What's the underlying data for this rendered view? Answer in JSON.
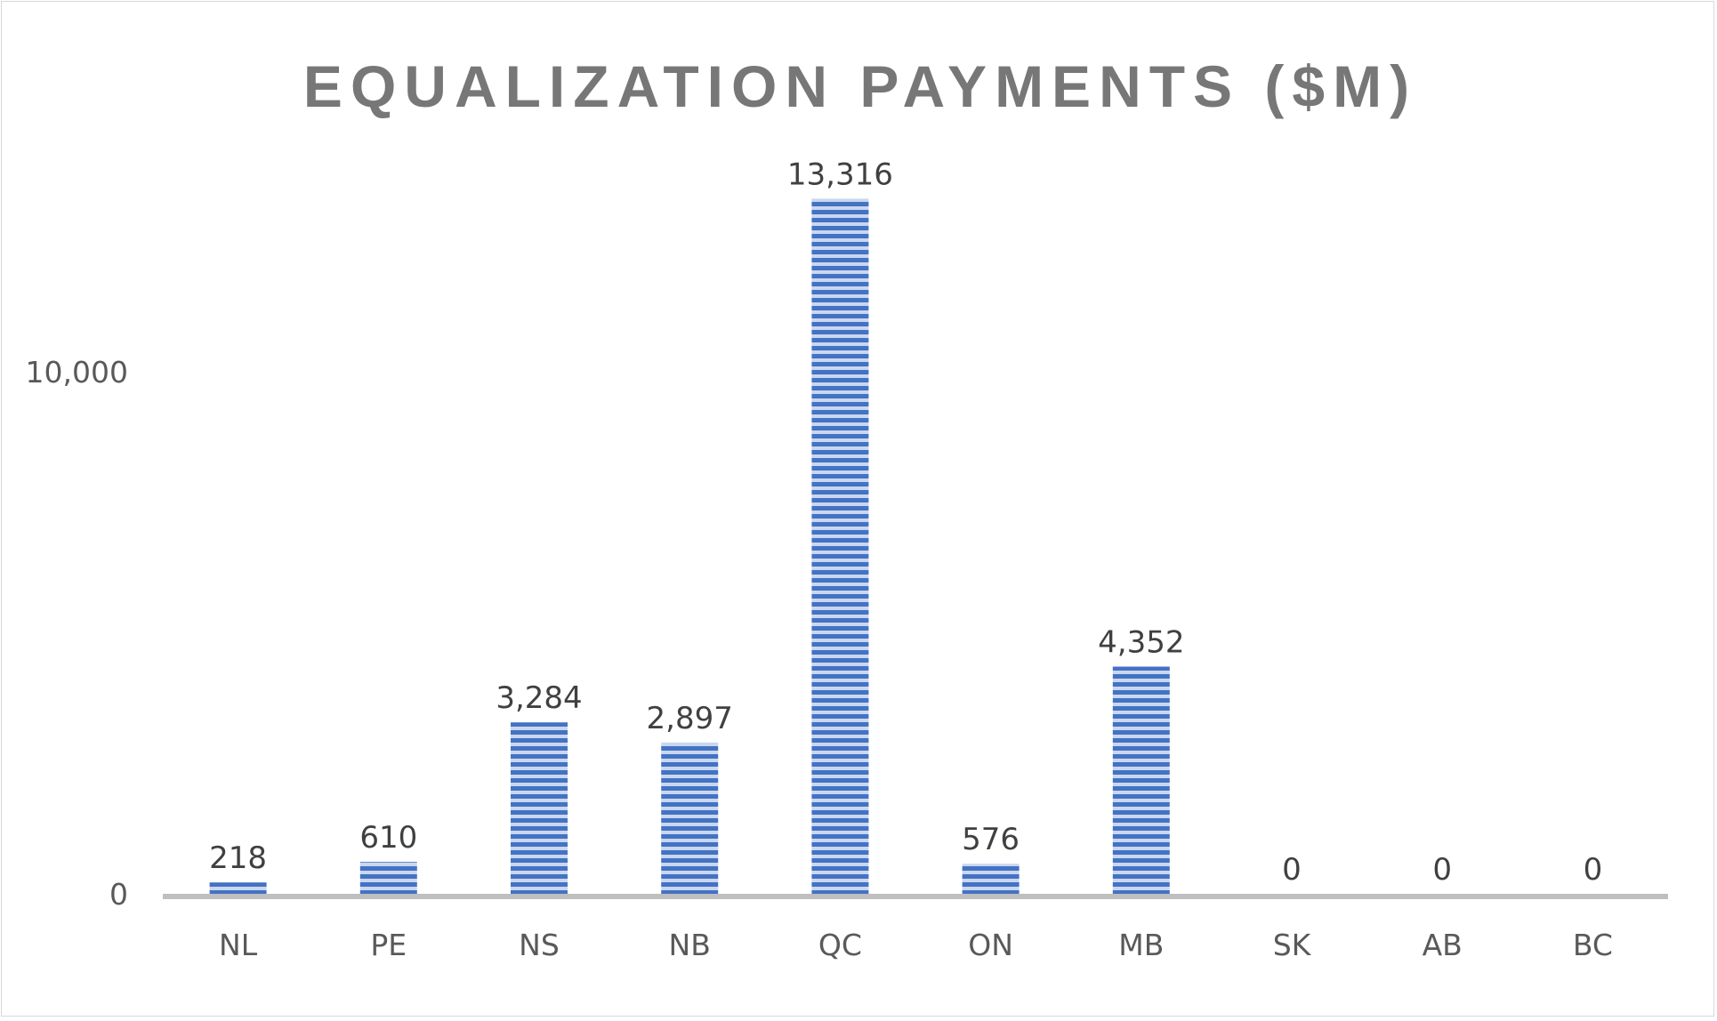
{
  "chart_data": {
    "type": "bar",
    "title": "EQUALIZATION PAYMENTS ($M)",
    "xlabel": "",
    "ylabel": "",
    "categories": [
      "NL",
      "PE",
      "NS",
      "NB",
      "QC",
      "ON",
      "MB",
      "SK",
      "AB",
      "BC"
    ],
    "values": [
      218,
      610,
      3284,
      2897,
      13316,
      576,
      4352,
      0,
      0,
      0
    ],
    "data_labels": [
      "218",
      "610",
      "3,284",
      "2,897",
      "13,316",
      "576",
      "4,352",
      "0",
      "0",
      "0"
    ],
    "ylim": [
      0,
      15000
    ],
    "y_ticks": [
      0,
      10000
    ],
    "y_tick_labels": [
      "0",
      "10,000"
    ],
    "grid": false,
    "legend": "none",
    "bar_fill": "horizontal-stripes",
    "colors": {
      "bar": "#4472c4",
      "bar_stripe_light": "#c9d7ef",
      "axis": "#bfbfbf",
      "title": "#777777",
      "tick_label": "#595959",
      "data_label": "#404040"
    }
  }
}
